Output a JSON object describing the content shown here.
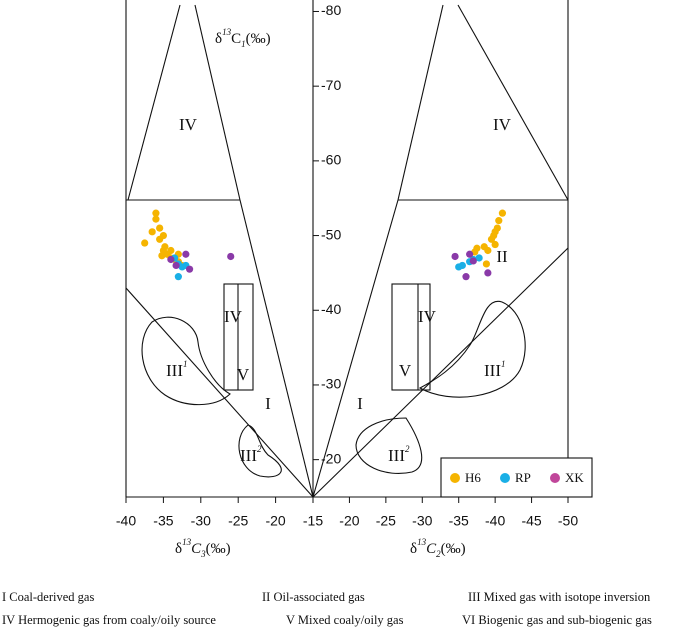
{
  "chart_data": [
    {
      "type": "scatter",
      "xlabel": [
        "δ",
        "13",
        "C",
        "3",
        "(‰)"
      ],
      "ylabel": [
        "δ",
        "13",
        "C",
        "1",
        "(‰)"
      ],
      "xlim": [
        -40,
        -15
      ],
      "xticks": [
        -40,
        -35,
        -30,
        -25,
        -20,
        -15
      ],
      "ylim": [
        -15,
        -81
      ],
      "yticks": [
        -20,
        -30,
        -40,
        -50,
        -60,
        -70,
        -80
      ],
      "series": [
        {
          "name": "H6",
          "color": "#f5b400",
          "x": [
            -36,
            -36,
            -35.5,
            -36.5,
            -35,
            -35.5,
            -37.5,
            -34.8,
            -35,
            -34.5,
            -34,
            -33.5,
            -33,
            -32.5,
            -34,
            -33,
            -35.2
          ],
          "values": [
            -53,
            -52.2,
            -51,
            -50.5,
            -50,
            -49.5,
            -49,
            -48.5,
            -48,
            -47.5,
            -47,
            -46.8,
            -46.5,
            -46,
            -48,
            -47.5,
            -47.3
          ]
        },
        {
          "name": "RP",
          "color": "#1aafe6",
          "x": [
            -33.5,
            -33,
            -32.5,
            -33,
            -32
          ],
          "values": [
            -47,
            -46.2,
            -45.8,
            -44.5,
            -46
          ]
        },
        {
          "name": "XK",
          "color": "#8a3aa8",
          "x": [
            -34,
            -32,
            -31.5,
            -26,
            -33.3
          ],
          "values": [
            -46.8,
            -47.5,
            -45.5,
            -47.2,
            -46
          ]
        }
      ]
    },
    {
      "type": "scatter",
      "xlabel": [
        "δ",
        "13",
        "C",
        "2",
        "(‰)"
      ],
      "xlim": [
        -15,
        -50
      ],
      "xticks": [
        -20,
        -25,
        -30,
        -35,
        -40,
        -45,
        -50
      ],
      "series": [
        {
          "name": "H6",
          "color": "#f5b400",
          "x": [
            -41,
            -40.5,
            -40.3,
            -40,
            -39.8,
            -39.5,
            -40,
            -38.5,
            -37.5,
            -39,
            -37.2,
            -38.8
          ],
          "values": [
            -53,
            -52,
            -51,
            -50.5,
            -50,
            -49.5,
            -48.8,
            -48.5,
            -48.3,
            -48,
            -47.8,
            -46.2
          ]
        },
        {
          "name": "RP",
          "color": "#1aafe6",
          "x": [
            -37.8,
            -36.5,
            -35.5,
            -35,
            -37
          ],
          "values": [
            -47,
            -46.5,
            -46,
            -45.8,
            -46.8
          ]
        },
        {
          "name": "XK",
          "color": "#8a3aa8",
          "x": [
            -34.5,
            -36.5,
            -37,
            -36,
            -39
          ],
          "values": [
            -47.2,
            -47.5,
            -46.6,
            -44.5,
            -45
          ]
        }
      ]
    }
  ],
  "legend": [
    {
      "name": "H6",
      "color": "#f5b400"
    },
    {
      "name": "RP",
      "color": "#1aafe6"
    },
    {
      "name": "XK",
      "color": "#c0469a"
    }
  ],
  "regions": {
    "I": "I",
    "II": "II",
    "III": "III",
    "IV": "IV",
    "V": "V",
    "sup1": "1",
    "sup2": "2"
  },
  "footnotes": [
    "I  Coal-derived gas",
    "II  Oil-associated gas",
    "III  Mixed gas with isotope inversion",
    "IV  Hermogenic gas from coaly/oily source",
    "V  Mixed coaly/oily gas",
    "VI  Biogenic gas and sub-biogenic gas"
  ]
}
